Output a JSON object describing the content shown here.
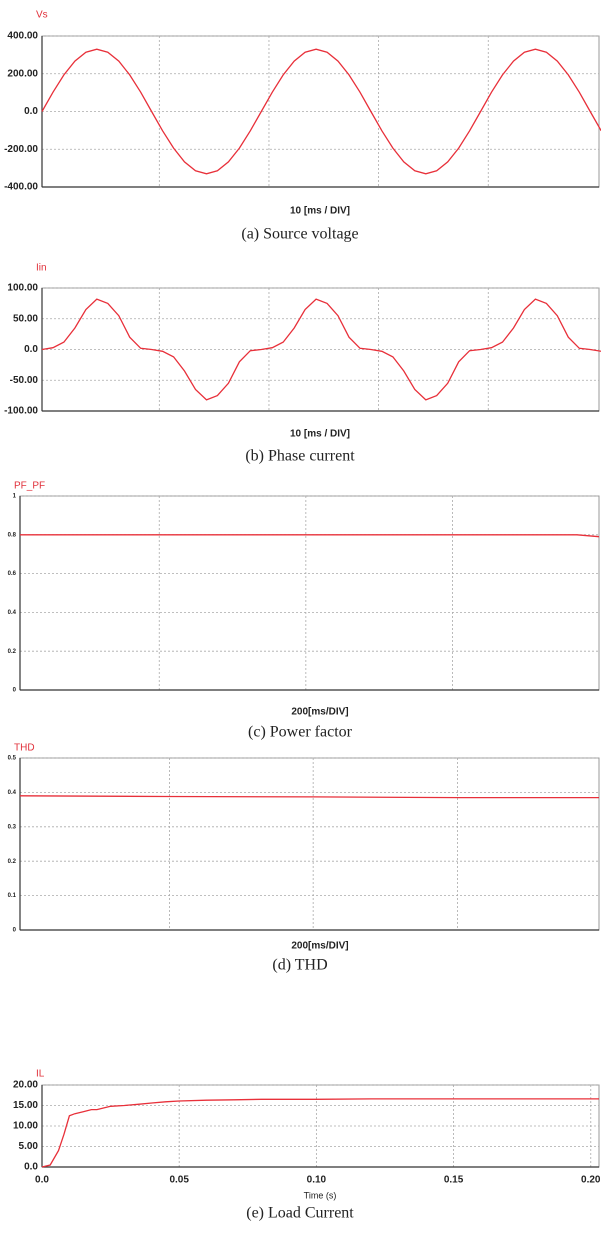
{
  "chart_data": [
    {
      "type": "line",
      "title": "Vs",
      "xlabel": "10 [ms / DIV]",
      "caption": "(a) Source voltage",
      "color": "#e8303a",
      "x": [
        0,
        1,
        2,
        3,
        4,
        5,
        6,
        7,
        8,
        9,
        10,
        11,
        12,
        13,
        14,
        15,
        16,
        17,
        18,
        19,
        20,
        21,
        22,
        23,
        24,
        25,
        26,
        27,
        28,
        29,
        30,
        31,
        32,
        33,
        34,
        35,
        36,
        37,
        38,
        39,
        40,
        41,
        42,
        43,
        44,
        45,
        46,
        47,
        48,
        49,
        50,
        51
      ],
      "values": [
        0,
        102,
        194,
        267,
        314,
        330,
        314,
        267,
        194,
        102,
        0,
        -102,
        -194,
        -267,
        -314,
        -330,
        -314,
        -267,
        -194,
        -102,
        0,
        102,
        194,
        267,
        314,
        330,
        314,
        267,
        194,
        102,
        0,
        -102,
        -194,
        -267,
        -314,
        -330,
        -314,
        -267,
        -194,
        -102,
        0,
        102,
        194,
        267,
        314,
        330,
        314,
        267,
        194,
        102,
        0,
        -102
      ],
      "xlim": [
        0,
        50.8
      ],
      "xticks": [
        10.7,
        20.7,
        30.7,
        40.7
      ],
      "ylim": [
        -400,
        400
      ],
      "yticks": [
        {
          "value": 400,
          "label": "400.00"
        },
        {
          "value": 200,
          "label": "200.00"
        },
        {
          "value": 0,
          "label": "0.0"
        },
        {
          "value": -200,
          "label": "-200.00"
        },
        {
          "value": -400,
          "label": "-400.00"
        }
      ],
      "grid": true
    },
    {
      "type": "line",
      "title": "Iin",
      "xlabel": "10 [ms / DIV]",
      "caption": "(b) Phase current",
      "color": "#e8303a",
      "x": [
        0,
        1,
        2,
        3,
        4,
        5,
        6,
        7,
        8,
        9,
        10,
        11,
        12,
        13,
        14,
        15,
        16,
        17,
        18,
        19,
        20,
        21,
        22,
        23,
        24,
        25,
        26,
        27,
        28,
        29,
        30,
        31,
        32,
        33,
        34,
        35,
        36,
        37,
        38,
        39,
        40,
        41,
        42,
        43,
        44,
        45,
        46,
        47,
        48,
        49,
        50,
        51
      ],
      "values": [
        0,
        3,
        12,
        35,
        65,
        82,
        75,
        55,
        20,
        2,
        0,
        -3,
        -12,
        -35,
        -65,
        -82,
        -75,
        -55,
        -20,
        -2,
        0,
        3,
        12,
        35,
        65,
        82,
        75,
        55,
        20,
        2,
        0,
        -3,
        -12,
        -35,
        -65,
        -82,
        -75,
        -55,
        -20,
        -2,
        0,
        3,
        12,
        35,
        65,
        82,
        75,
        55,
        20,
        2,
        0,
        -3
      ],
      "xlim": [
        0,
        50.8
      ],
      "xticks": [
        10.7,
        20.7,
        30.7,
        40.7
      ],
      "ylim": [
        -100,
        100
      ],
      "yticks": [
        {
          "value": 100,
          "label": "100.00"
        },
        {
          "value": 50,
          "label": "50.00"
        },
        {
          "value": 0,
          "label": "0.0"
        },
        {
          "value": -50,
          "label": "-50.00"
        },
        {
          "value": -100,
          "label": "-100.00"
        }
      ],
      "grid": true
    },
    {
      "type": "line",
      "title": "PF_PF",
      "xlabel": "200[ms/DIV]",
      "caption": "(c) Power factor",
      "color": "#e8303a",
      "x": [
        0,
        200,
        400,
        600,
        760,
        790
      ],
      "values": [
        0.8,
        0.8,
        0.8,
        0.8,
        0.8,
        0.79
      ],
      "xlim": [
        0,
        790
      ],
      "xticks": [
        190,
        390,
        590
      ],
      "ylim": [
        0,
        1
      ],
      "yticks": [
        1,
        0.8,
        0.6,
        0.4,
        0.2,
        0
      ],
      "grid": true
    },
    {
      "type": "line",
      "title": "THD",
      "xlabel": "200[ms/DIV]",
      "caption": "(d) THD",
      "color": "#e8303a",
      "x": [
        0,
        200,
        400,
        600,
        790
      ],
      "values": [
        0.39,
        0.388,
        0.387,
        0.385,
        0.385
      ],
      "xlim": [
        0,
        790
      ],
      "xticks": [
        204,
        400,
        597
      ],
      "ylim": [
        0,
        0.5
      ],
      "yticks": [
        0.5,
        0.4,
        0.3,
        0.2,
        0.1,
        0
      ],
      "grid": true
    },
    {
      "type": "line",
      "title": "IL",
      "xlabel": "Time (s)",
      "caption": "(e) Load Current",
      "color": "#e8303a",
      "x": [
        0,
        0.003,
        0.006,
        0.008,
        0.01,
        0.012,
        0.015,
        0.018,
        0.02,
        0.025,
        0.03,
        0.035,
        0.04,
        0.045,
        0.05,
        0.06,
        0.07,
        0.08,
        0.1,
        0.12,
        0.14,
        0.16,
        0.18,
        0.2,
        0.203
      ],
      "values": [
        0,
        0.5,
        4,
        8,
        12.5,
        13,
        13.5,
        14,
        14,
        14.8,
        15,
        15.3,
        15.6,
        15.9,
        16.1,
        16.3,
        16.4,
        16.5,
        16.5,
        16.6,
        16.6,
        16.6,
        16.6,
        16.6,
        16.6
      ],
      "xlim": [
        0,
        0.203
      ],
      "xticks": [
        {
          "value": 0,
          "label": "0.0"
        },
        0.05,
        {
          "value": 0.1,
          "label": "0.10"
        },
        0.15,
        {
          "value": 0.2,
          "label": "0.20"
        }
      ],
      "ylim": [
        0,
        20
      ],
      "yticks": [
        {
          "value": 20,
          "label": "20.00"
        },
        {
          "value": 15,
          "label": "15.00"
        },
        {
          "value": 10,
          "label": "10.00"
        },
        {
          "value": 5,
          "label": "5.00"
        },
        {
          "value": 0,
          "label": "0.0"
        }
      ],
      "grid": true
    }
  ]
}
